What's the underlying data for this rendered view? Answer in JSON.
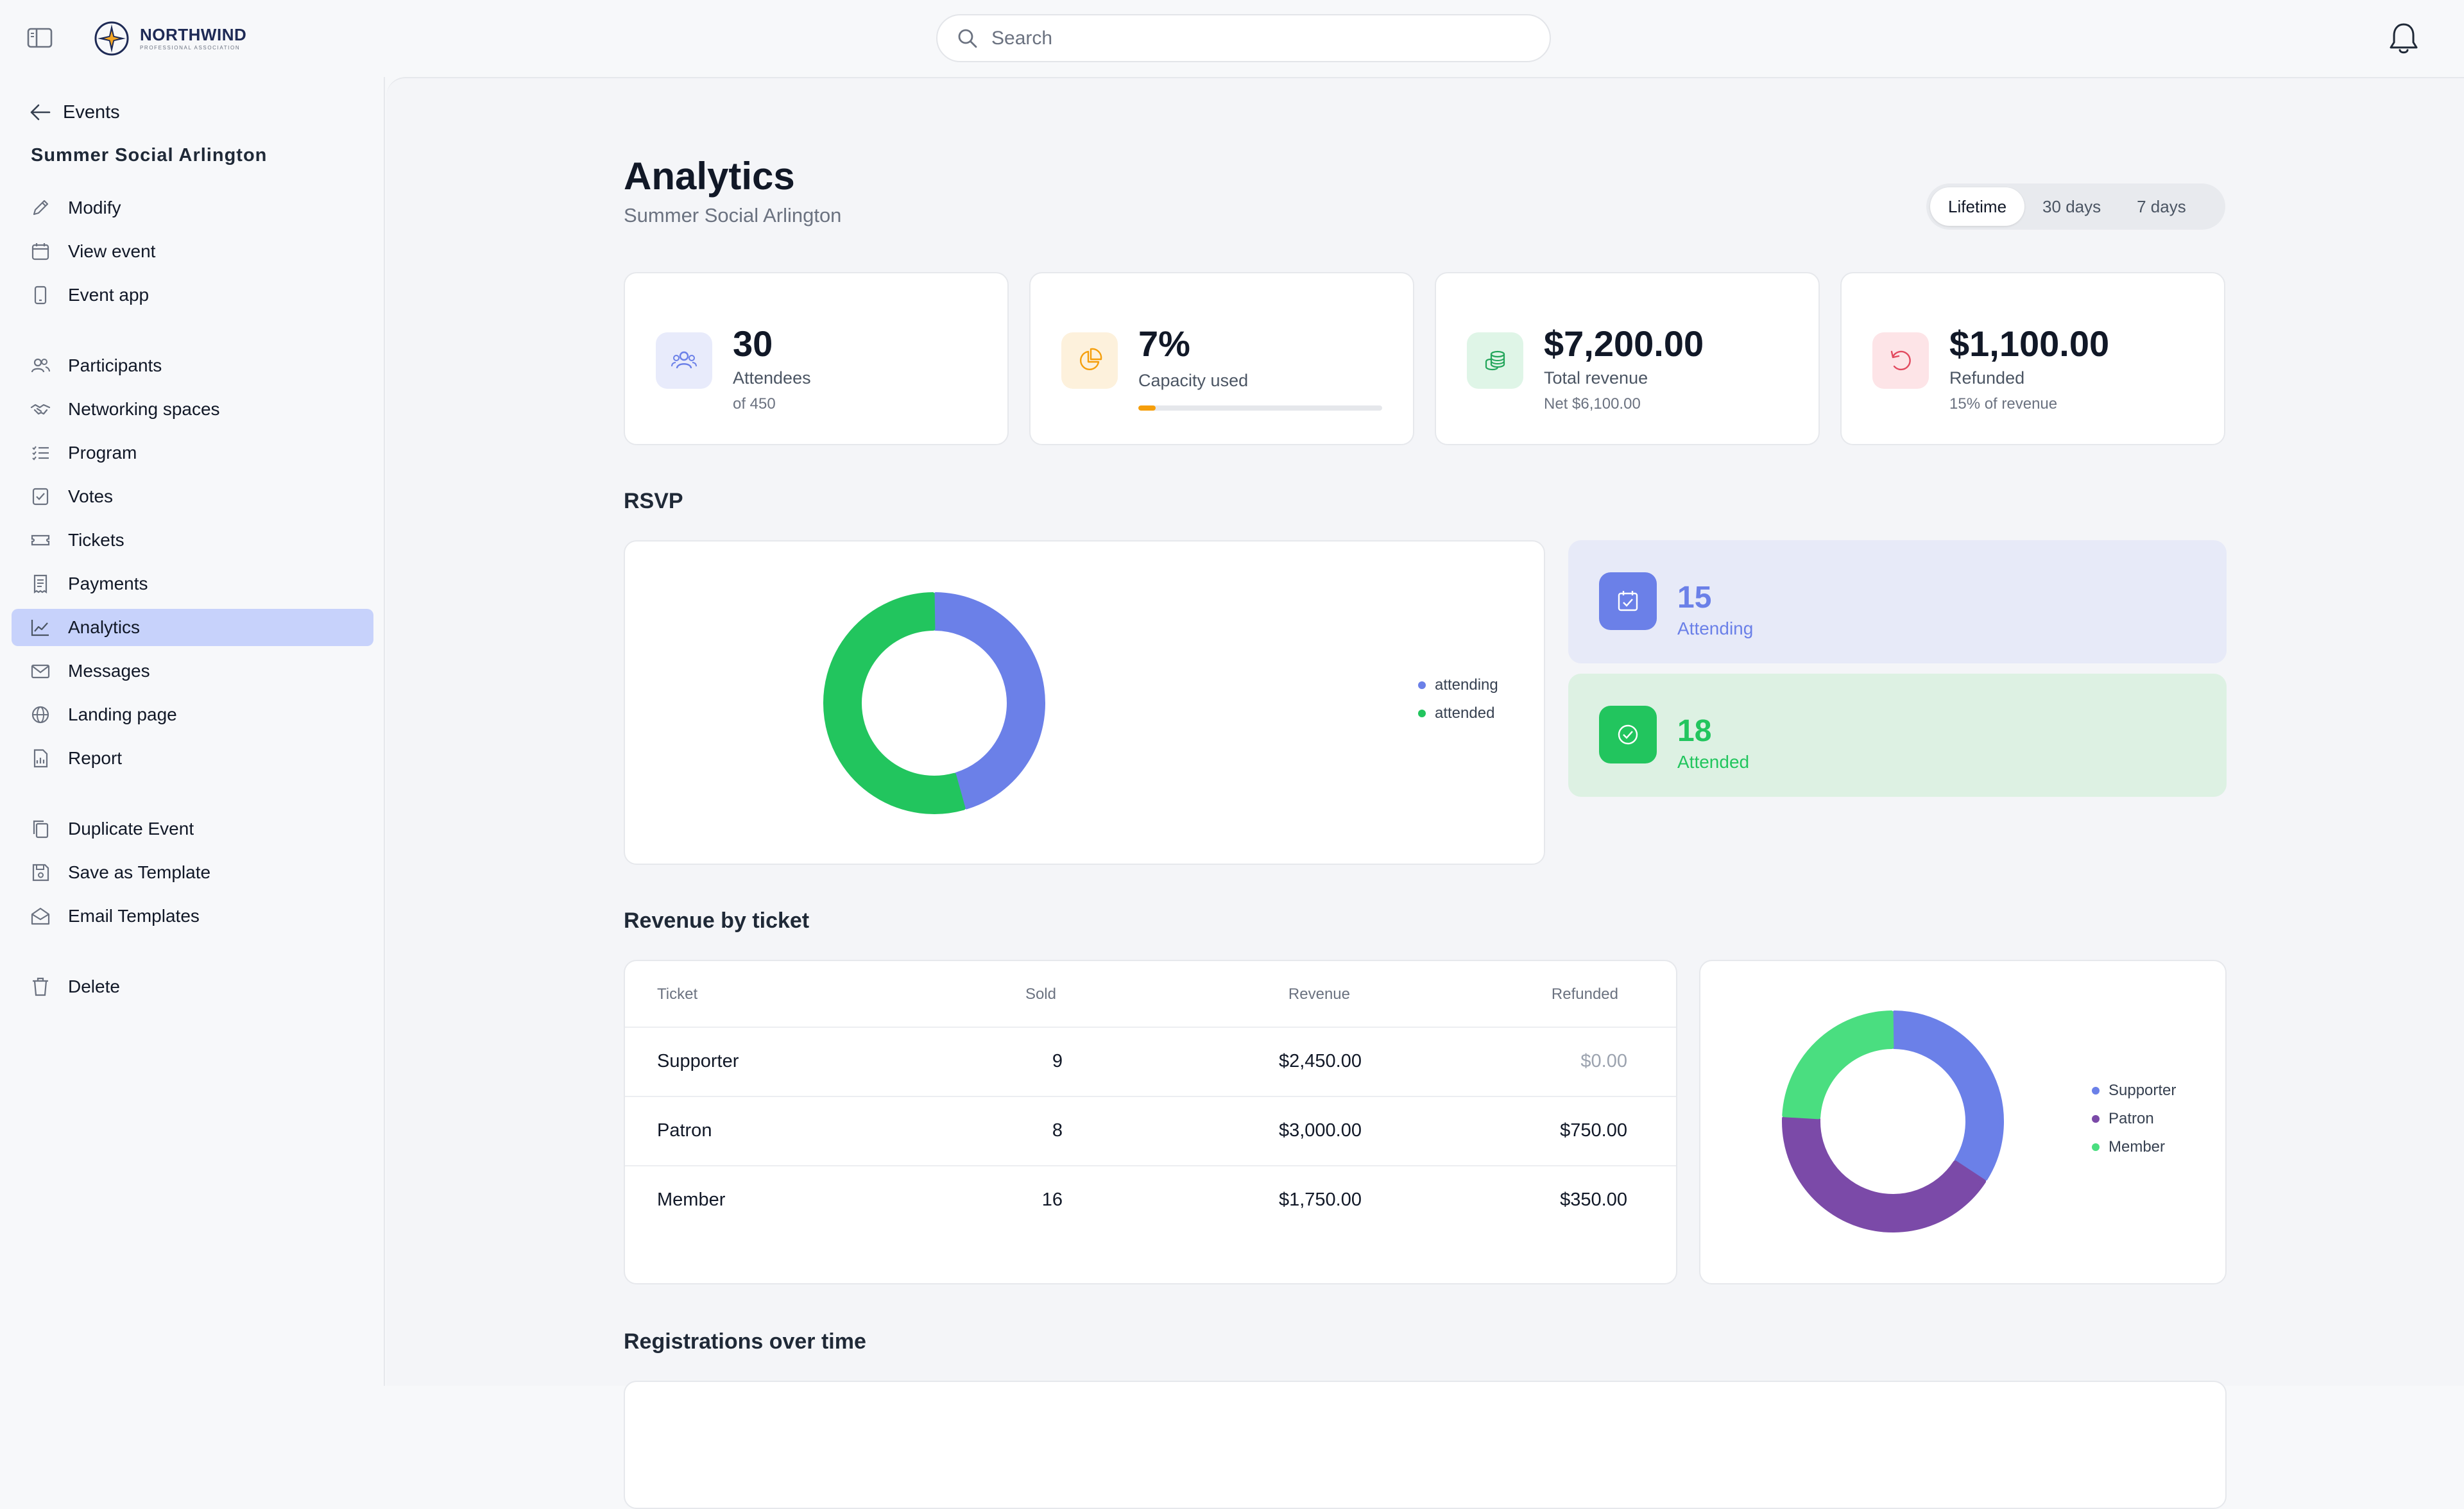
{
  "app": {
    "brand_name": "NORTHWIND",
    "brand_sub": "PROFESSIONAL ASSOCIATION"
  },
  "search": {
    "placeholder": "Search",
    "value": ""
  },
  "sidebar": {
    "back_label": "Events",
    "event_title": "Summer Social Arlington",
    "group1": [
      {
        "label": "Modify",
        "icon": "pencil-icon"
      },
      {
        "label": "View event",
        "icon": "calendar-icon"
      },
      {
        "label": "Event app",
        "icon": "phone-icon"
      }
    ],
    "group2": [
      {
        "label": "Participants",
        "icon": "users-icon"
      },
      {
        "label": "Networking spaces",
        "icon": "handshake-icon"
      },
      {
        "label": "Program",
        "icon": "list-icon"
      },
      {
        "label": "Votes",
        "icon": "ballot-icon"
      },
      {
        "label": "Tickets",
        "icon": "ticket-icon"
      },
      {
        "label": "Payments",
        "icon": "receipt-icon"
      },
      {
        "label": "Analytics",
        "icon": "chart-line-icon",
        "active": true
      },
      {
        "label": "Messages",
        "icon": "mail-icon"
      },
      {
        "label": "Landing page",
        "icon": "globe-icon"
      },
      {
        "label": "Report",
        "icon": "report-icon"
      }
    ],
    "group3": [
      {
        "label": "Duplicate Event",
        "icon": "copy-icon"
      },
      {
        "label": "Save as Template",
        "icon": "save-icon"
      },
      {
        "label": "Email Templates",
        "icon": "envelope-open-icon"
      }
    ],
    "group4": [
      {
        "label": "Delete",
        "icon": "trash-icon"
      }
    ]
  },
  "header": {
    "title": "Analytics",
    "subtitle": "Summer Social Arlington",
    "ranges": [
      "Lifetime",
      "30 days",
      "7 days"
    ],
    "active_range": "Lifetime"
  },
  "stats": {
    "attendees": {
      "value": "30",
      "label": "Attendees",
      "sub": "of 450"
    },
    "capacity": {
      "value": "7%",
      "label": "Capacity used",
      "progress": 0.07
    },
    "revenue": {
      "value": "$7,200.00",
      "label": "Total revenue",
      "sub": "Net $6,100.00"
    },
    "refunded": {
      "value": "$1,100.00",
      "label": "Refunded",
      "sub": "15% of revenue"
    }
  },
  "rsvp": {
    "title": "RSVP",
    "attending": {
      "value": "15",
      "label": "Attending"
    },
    "attended": {
      "value": "18",
      "label": "Attended"
    }
  },
  "revenue_by_ticket": {
    "title": "Revenue by ticket",
    "columns": [
      "Ticket",
      "Sold",
      "Revenue",
      "Refunded"
    ],
    "rows": [
      {
        "ticket": "Supporter",
        "sold": "9",
        "revenue": "$2,450.00",
        "refunded": "$0.00"
      },
      {
        "ticket": "Patron",
        "sold": "8",
        "revenue": "$3,000.00",
        "refunded": "$750.00"
      },
      {
        "ticket": "Member",
        "sold": "16",
        "revenue": "$1,750.00",
        "refunded": "$350.00"
      }
    ]
  },
  "registrations": {
    "title": "Registrations over time"
  },
  "chart_data": [
    {
      "type": "pie",
      "title": "",
      "categories": [
        "attending",
        "attended"
      ],
      "values": [
        15,
        18
      ],
      "colors": [
        "#6b80e8",
        "#22c55e"
      ],
      "legend": "right"
    },
    {
      "type": "pie",
      "title": "",
      "categories": [
        "Supporter",
        "Patron",
        "Member"
      ],
      "values": [
        2450,
        3000,
        1750
      ],
      "colors": [
        "#6b80e8",
        "#7b4aa8",
        "#4ade80"
      ],
      "legend": "right"
    }
  ],
  "colors": {
    "accent": "#6b80e8",
    "active_nav": "#c7d2fb",
    "green": "#22c55e"
  }
}
